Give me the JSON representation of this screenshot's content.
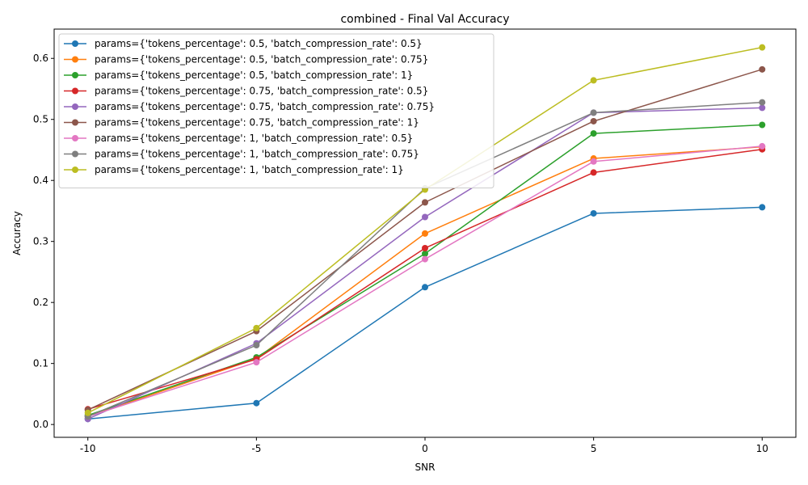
{
  "chart_data": {
    "type": "line",
    "title": "combined - Final Val Accuracy",
    "xlabel": "SNR",
    "ylabel": "Accuracy",
    "x": [
      -10,
      -5,
      0,
      5,
      10
    ],
    "x_tick_labels": [
      "-10",
      "-5",
      "0",
      "5",
      "10"
    ],
    "ylim": [
      -0.021,
      0.648
    ],
    "y_ticks": [
      0.0,
      0.1,
      0.2,
      0.3,
      0.4,
      0.5,
      0.6
    ],
    "y_tick_labels": [
      "0.0",
      "0.1",
      "0.2",
      "0.3",
      "0.4",
      "0.5",
      "0.6"
    ],
    "grid": false,
    "legend_position": "top-left",
    "series": [
      {
        "name": "params={'tokens_percentage': 0.5, 'batch_compression_rate': 0.5}",
        "color": "#1f77b4",
        "values": [
          0.009,
          0.035,
          0.225,
          0.346,
          0.356
        ]
      },
      {
        "name": "params={'tokens_percentage': 0.5, 'batch_compression_rate': 0.75}",
        "color": "#ff7f0e",
        "values": [
          0.013,
          0.108,
          0.313,
          0.436,
          0.455
        ]
      },
      {
        "name": "params={'tokens_percentage': 0.5, 'batch_compression_rate': 1}",
        "color": "#2ca02c",
        "values": [
          0.015,
          0.11,
          0.28,
          0.477,
          0.491
        ]
      },
      {
        "name": "params={'tokens_percentage': 0.75, 'batch_compression_rate': 0.5}",
        "color": "#d62728",
        "values": [
          0.025,
          0.107,
          0.289,
          0.413,
          0.451
        ]
      },
      {
        "name": "params={'tokens_percentage': 0.75, 'batch_compression_rate': 0.75}",
        "color": "#9467bd",
        "values": [
          0.009,
          0.133,
          0.34,
          0.511,
          0.519
        ]
      },
      {
        "name": "params={'tokens_percentage': 0.75, 'batch_compression_rate': 1}",
        "color": "#8c564b",
        "values": [
          0.024,
          0.153,
          0.364,
          0.497,
          0.582
        ]
      },
      {
        "name": "params={'tokens_percentage': 1, 'batch_compression_rate': 0.5}",
        "color": "#e377c2",
        "values": [
          0.013,
          0.102,
          0.271,
          0.431,
          0.456
        ]
      },
      {
        "name": "params={'tokens_percentage': 1, 'batch_compression_rate': 0.75}",
        "color": "#7f7f7f",
        "values": [
          0.013,
          0.13,
          0.387,
          0.511,
          0.528
        ]
      },
      {
        "name": "params={'tokens_percentage': 1, 'batch_compression_rate': 1}",
        "color": "#bcbd22",
        "values": [
          0.019,
          0.158,
          0.385,
          0.564,
          0.618
        ]
      }
    ]
  }
}
